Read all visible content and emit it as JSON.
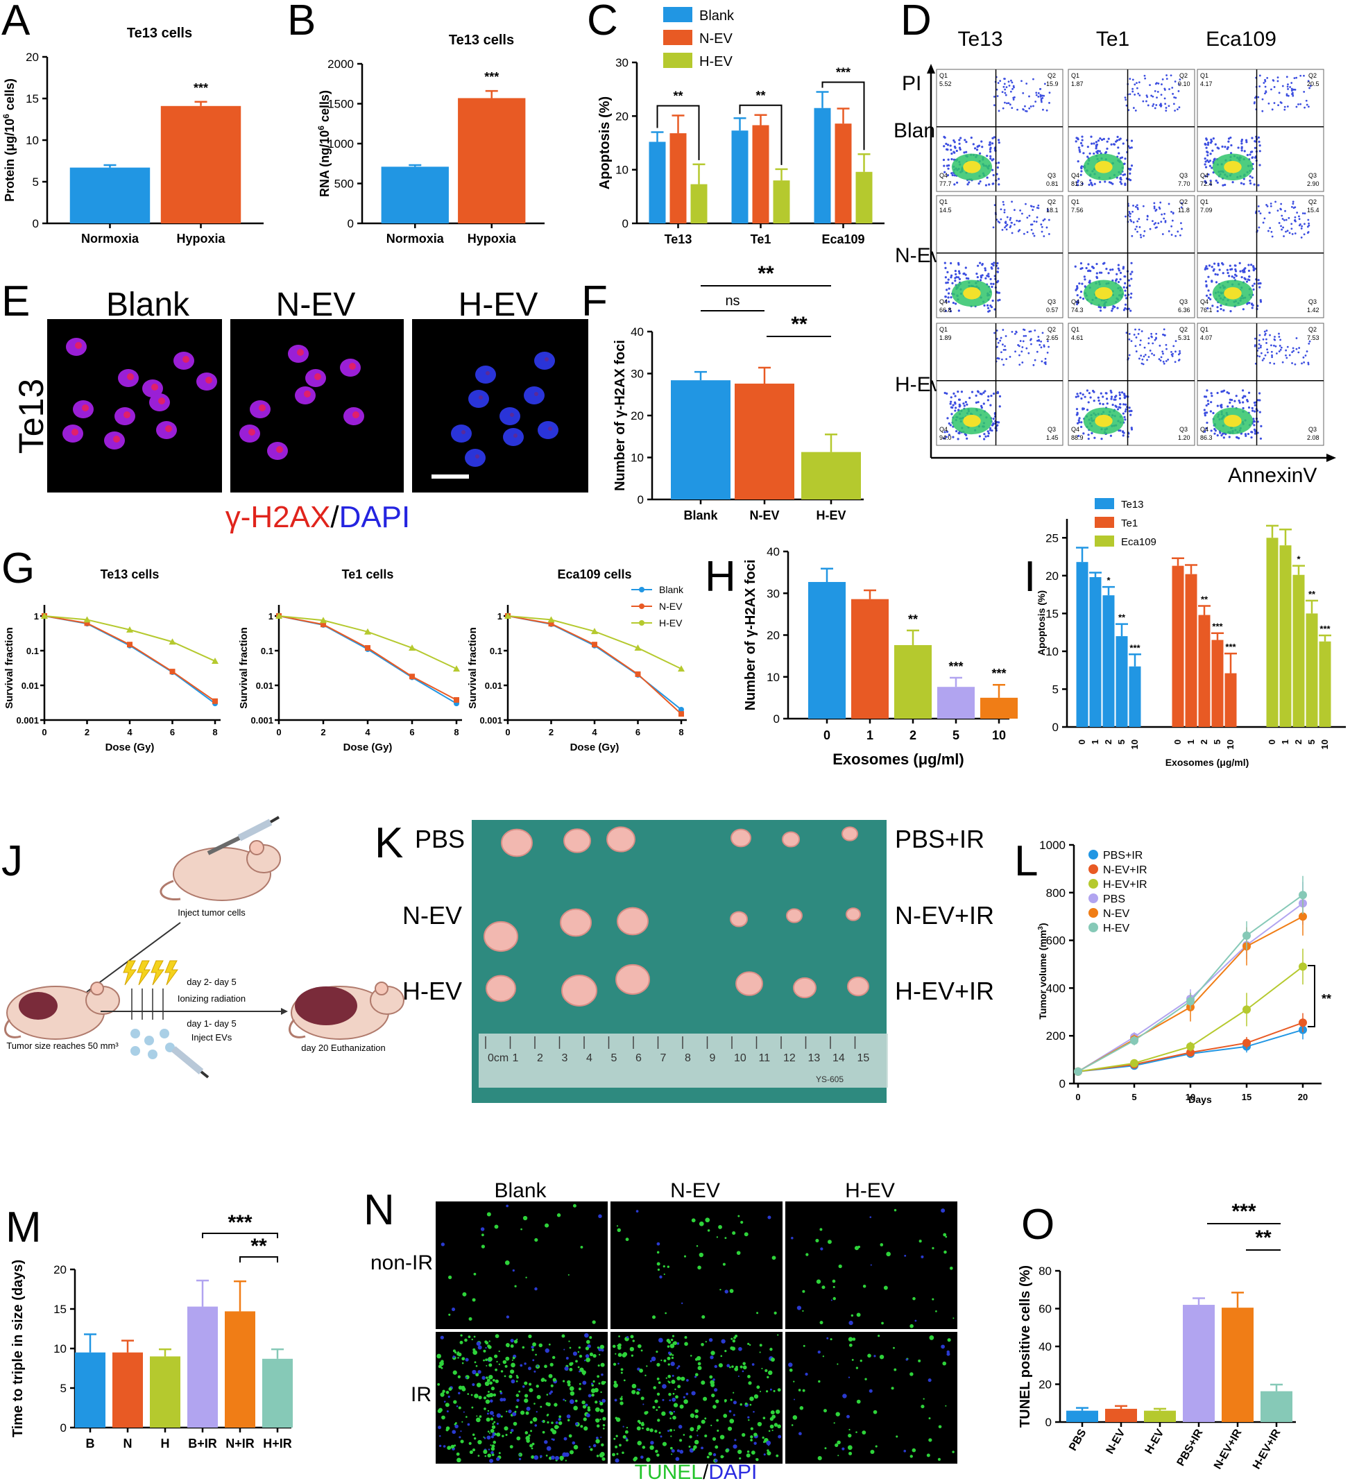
{
  "colors": {
    "blue": "#2196e3",
    "orange": "#e85a24",
    "green": "#b5c92e",
    "purple": "#b1a4f0",
    "amber": "#f07d16",
    "teal": "#86c9b7",
    "scale": "#ffffff"
  },
  "panel_labels": {
    "A": "A",
    "B": "B",
    "C": "C",
    "D": "D",
    "E": "E",
    "F": "F",
    "G": "G",
    "H": "H",
    "I": "I",
    "J": "J",
    "K": "K",
    "L": "L",
    "M": "M",
    "N": "N",
    "O": "O"
  },
  "chart_data": [
    {
      "id": "A",
      "type": "bar",
      "title": "Te13 cells",
      "categories": [
        "Normoxia",
        "Hypoxia"
      ],
      "values": [
        6.7,
        14.1
      ],
      "errors": [
        0.3,
        0.5
      ],
      "ylabel_main": "Protein (μg/10",
      "ylabel_sup": "6",
      "ylabel_end": " cells)",
      "ylim": [
        0,
        20
      ],
      "yticks": [
        "0",
        "5",
        "10",
        "15",
        "20"
      ],
      "sig": [
        "",
        "***"
      ]
    },
    {
      "id": "B",
      "type": "bar",
      "title": "Te13 cells",
      "categories": [
        "Normoxia",
        "Hypoxia"
      ],
      "values": [
        710,
        1570
      ],
      "errors": [
        20,
        90
      ],
      "ylabel_main": "RNA (ng/10",
      "ylabel_sup": "6",
      "ylabel_end": " cells)",
      "ylim": [
        0,
        2000
      ],
      "yticks": [
        "0",
        "500",
        "1000",
        "1500",
        "2000"
      ],
      "sig": [
        "",
        "***"
      ]
    },
    {
      "id": "C",
      "type": "bar",
      "ylabel": "Apoptosis (%)",
      "ylim": [
        0,
        30
      ],
      "yticks": [
        "0",
        "10",
        "20",
        "30"
      ],
      "categories": [
        "Te13",
        "Te1",
        "Eca109"
      ],
      "series": [
        {
          "name": "Blank",
          "values": [
            15.2,
            17.3,
            21.5
          ],
          "errors": [
            1.8,
            2.3,
            3.0
          ]
        },
        {
          "name": "N-EV",
          "values": [
            16.8,
            18.3,
            18.6
          ],
          "errors": [
            3.3,
            1.9,
            2.8
          ]
        },
        {
          "name": "H-EV",
          "values": [
            7.3,
            8.0,
            9.6
          ],
          "errors": [
            3.7,
            2.1,
            3.3
          ]
        }
      ],
      "sig": [
        "**",
        "**",
        "***"
      ]
    },
    {
      "id": "F",
      "type": "bar",
      "ylabel": "Number of γ-H2AX foci",
      "ylim": [
        0,
        40
      ],
      "yticks": [
        "0",
        "10",
        "20",
        "30",
        "40"
      ],
      "categories": [
        "Blank",
        "N-EV",
        "H-EV"
      ],
      "values": [
        28.4,
        27.6,
        11.3
      ],
      "errors": [
        2.0,
        3.8,
        4.2
      ],
      "sig": [
        "**",
        "ns",
        "**"
      ]
    },
    {
      "id": "G",
      "type": "line",
      "ylabel": "Survival fraction",
      "xlabel": "Dose (Gy)",
      "x": [
        0,
        2,
        4,
        6,
        8
      ],
      "xticks": [
        "0",
        "2",
        "4",
        "6",
        "8"
      ],
      "yticks": [
        "0.001",
        "0.01",
        "0.1",
        "1"
      ],
      "ylim": [
        0.001,
        1
      ],
      "legend": [
        "Blank",
        "N-EV",
        "H-EV"
      ],
      "panels": [
        {
          "title": "Te13 cells",
          "series": [
            {
              "name": "Blank",
              "values": [
                1,
                0.6,
                0.14,
                0.024,
                0.003
              ]
            },
            {
              "name": "N-EV",
              "values": [
                1,
                0.62,
                0.15,
                0.025,
                0.0035
              ]
            },
            {
              "name": "H-EV",
              "values": [
                1,
                0.78,
                0.4,
                0.18,
                0.05
              ]
            }
          ]
        },
        {
          "title": "Te1 cells",
          "series": [
            {
              "name": "Blank",
              "values": [
                1,
                0.55,
                0.11,
                0.017,
                0.003
              ]
            },
            {
              "name": "N-EV",
              "values": [
                1,
                0.57,
                0.12,
                0.018,
                0.0038
              ]
            },
            {
              "name": "H-EV",
              "values": [
                1,
                0.75,
                0.35,
                0.12,
                0.03
              ]
            }
          ]
        },
        {
          "title": "Eca109 cells",
          "series": [
            {
              "name": "Blank",
              "values": [
                1,
                0.58,
                0.14,
                0.02,
                0.002
              ]
            },
            {
              "name": "N-EV",
              "values": [
                1,
                0.6,
                0.15,
                0.021,
                0.0015
              ]
            },
            {
              "name": "H-EV",
              "values": [
                1,
                0.78,
                0.36,
                0.12,
                0.03
              ]
            }
          ]
        }
      ]
    },
    {
      "id": "H",
      "type": "bar",
      "ylabel": "Number of γ-H2AX foci",
      "xlabel": "Exosomes (μg/ml)",
      "ylim": [
        0,
        40
      ],
      "yticks": [
        "0",
        "10",
        "20",
        "30",
        "40"
      ],
      "categories": [
        "0",
        "1",
        "2",
        "5",
        "10"
      ],
      "values": [
        32.7,
        28.6,
        17.6,
        7.6,
        5.0
      ],
      "errors": [
        3.2,
        2.1,
        3.5,
        2.2,
        3.1
      ],
      "sig": [
        "",
        "",
        "**",
        "***",
        "***"
      ]
    },
    {
      "id": "I",
      "type": "bar",
      "ylabel": "Apoptosis (%)",
      "xlabel": "Exosomes (μg/ml)",
      "ylim": [
        0,
        27.5
      ],
      "yticks": [
        "0",
        "5",
        "10",
        "15",
        "20",
        "25"
      ],
      "categories": [
        "0",
        "1",
        "2",
        "5",
        "10"
      ],
      "series": [
        {
          "name": "Te13",
          "values": [
            21.8,
            19.8,
            17.4,
            12.0,
            8.0
          ],
          "errors": [
            1.9,
            0.6,
            1.1,
            1.6,
            1.6
          ],
          "sig": [
            "",
            "",
            "*",
            "**",
            "***"
          ]
        },
        {
          "name": "Te1",
          "values": [
            21.3,
            20.2,
            14.8,
            11.5,
            7.1
          ],
          "errors": [
            1.0,
            1.2,
            1.2,
            0.9,
            2.6
          ],
          "sig": [
            "",
            "",
            "**",
            "***",
            "***"
          ]
        },
        {
          "name": "Eca109",
          "values": [
            25.0,
            24.0,
            20.1,
            15.0,
            11.3
          ],
          "errors": [
            1.6,
            2.1,
            1.2,
            1.7,
            0.8
          ],
          "sig": [
            "",
            "",
            "*",
            "**",
            "***"
          ]
        }
      ]
    },
    {
      "id": "L",
      "type": "line",
      "ylabel_main": "Tumor volume (mm",
      "ylabel_sup": "3",
      "ylabel_end": ")",
      "xlabel": "Days",
      "x": [
        0,
        5,
        10,
        15,
        20
      ],
      "xticks": [
        "0",
        "5",
        "10",
        "15",
        "20"
      ],
      "ylim": [
        0,
        1000
      ],
      "yticks": [
        "0",
        "200",
        "400",
        "600",
        "800",
        "1000"
      ],
      "series": [
        {
          "name": "PBS+IR",
          "values": [
            50,
            75,
            125,
            155,
            225
          ],
          "errors": [
            10,
            10,
            15,
            25,
            40
          ]
        },
        {
          "name": "N-EV+IR",
          "values": [
            50,
            80,
            130,
            170,
            255
          ],
          "errors": [
            10,
            10,
            15,
            25,
            40
          ]
        },
        {
          "name": "H-EV+IR",
          "values": [
            50,
            85,
            155,
            310,
            490
          ],
          "errors": [
            10,
            12,
            20,
            70,
            75
          ]
        },
        {
          "name": "PBS",
          "values": [
            50,
            195,
            355,
            580,
            755
          ],
          "errors": [
            10,
            20,
            40,
            60,
            90
          ]
        },
        {
          "name": "N-EV",
          "values": [
            50,
            185,
            320,
            575,
            700
          ],
          "errors": [
            10,
            20,
            60,
            80,
            80
          ]
        },
        {
          "name": "H-EV",
          "values": [
            50,
            180,
            345,
            620,
            790
          ],
          "errors": [
            10,
            20,
            35,
            60,
            80
          ]
        }
      ],
      "sig": "**"
    },
    {
      "id": "M",
      "type": "bar",
      "ylabel": "Time to triple in size (days)",
      "ylim": [
        0,
        20
      ],
      "yticks": [
        "0",
        "5",
        "10",
        "15",
        "20"
      ],
      "categories": [
        "B",
        "N",
        "H",
        "B+IR",
        "N+IR",
        "H+IR"
      ],
      "values": [
        9.5,
        9.5,
        9.0,
        15.3,
        14.7,
        8.7
      ],
      "errors": [
        2.3,
        1.5,
        0.9,
        3.3,
        3.8,
        1.2
      ],
      "sig": [
        "***",
        "**"
      ]
    },
    {
      "id": "O",
      "type": "bar",
      "ylabel": "TUNEL positive cells (%)",
      "ylim": [
        0,
        80
      ],
      "yticks": [
        "0",
        "20",
        "40",
        "60",
        "80"
      ],
      "categories": [
        "PBS",
        "N-EV",
        "H-EV",
        "PBS+IR",
        "N-EV+IR",
        "H-EV+IR"
      ],
      "values": [
        6.0,
        7.0,
        6.0,
        62.0,
        60.5,
        16.3
      ],
      "errors": [
        1.5,
        1.5,
        1.0,
        3.5,
        8.0,
        3.5
      ],
      "sig": [
        "***",
        "**"
      ]
    }
  ],
  "panel_D": {
    "cols": [
      "Te13",
      "Te1",
      "Eca109"
    ],
    "rows": [
      "Blank",
      "N-Ev",
      "H-Ev"
    ],
    "y_axis": "PI",
    "x_axis": "AnnexinV",
    "quadrants": [
      [
        {
          "q1": "5.52",
          "q2": "15.9",
          "q3": "0.81",
          "q4": "77.7"
        },
        {
          "q1": "1.87",
          "q2": "9.10",
          "q3": "7.70",
          "q4": "81.3"
        },
        {
          "q1": "4.17",
          "q2": "20.5",
          "q3": "2.90",
          "q4": "72.4"
        }
      ],
      [
        {
          "q1": "14.5",
          "q2": "18.1",
          "q3": "0.57",
          "q4": "66.8"
        },
        {
          "q1": "7.56",
          "q2": "11.8",
          "q3": "6.36",
          "q4": "74.3"
        },
        {
          "q1": "7.09",
          "q2": "15.4",
          "q3": "1.42",
          "q4": "76.1"
        }
      ],
      [
        {
          "q1": "1.89",
          "q2": "2.65",
          "q3": "1.45",
          "q4": "94.0"
        },
        {
          "q1": "4.61",
          "q2": "5.31",
          "q3": "1.20",
          "q4": "88.9"
        },
        {
          "q1": "4.07",
          "q2": "7.53",
          "q3": "2.08",
          "q4": "86.3"
        }
      ]
    ]
  },
  "panel_E": {
    "cols": [
      "Blank",
      "N-EV",
      "H-EV"
    ],
    "row": "Te13",
    "caption_red": "γ-H2AX",
    "caption_sep": "/",
    "caption_blue": "DAPI"
  },
  "panel_J": {
    "inject_tumor": "Inject tumor cells",
    "tumor_size": "Tumor size reaches 50 mm³",
    "days_ir": "day 2- day 5",
    "ir": "Ionizing radiation",
    "days_ev": "day 1- day 5",
    "inject_ev": "Inject EVs",
    "euth": "day 20 Euthanization"
  },
  "panel_K": {
    "left": [
      "PBS",
      "N-EV",
      "H-EV"
    ],
    "right": [
      "PBS+IR",
      "N-EV+IR",
      "H-EV+IR"
    ],
    "ruler": [
      "0cm",
      "1",
      "2",
      "3",
      "4",
      "5",
      "6",
      "7",
      "8",
      "9",
      "10",
      "11",
      "12",
      "13",
      "14",
      "15"
    ],
    "ruler_brand": "YS-605"
  },
  "panel_N": {
    "cols": [
      "Blank",
      "N-EV",
      "H-EV"
    ],
    "rows": [
      "non-IR",
      "IR"
    ],
    "caption_green": "TUNEL",
    "caption_sep": "/",
    "caption_blue": "DAPI"
  }
}
